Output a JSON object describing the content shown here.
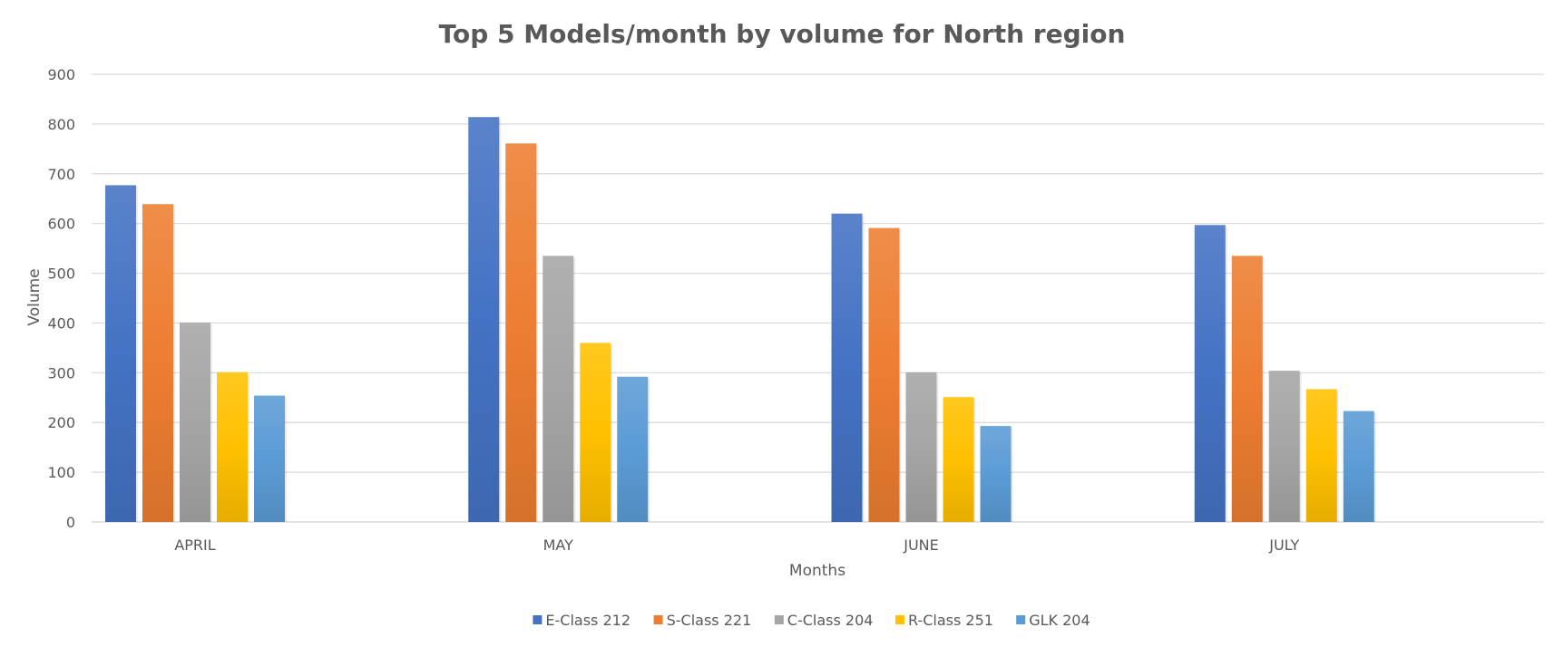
{
  "chart_data": {
    "type": "bar",
    "title": "Top 5 Models/month by volume for North region",
    "xlabel": "Months",
    "ylabel": "Volume",
    "ylim": [
      0,
      900
    ],
    "yticks": [
      0,
      100,
      200,
      300,
      400,
      500,
      600,
      700,
      800,
      900
    ],
    "categories": [
      "APRIL",
      "MAY",
      "JUNE",
      "JULY"
    ],
    "grid": true,
    "legend_position": "bottom",
    "series": [
      {
        "name": "E-Class 212",
        "color": "#4472c4",
        "values": [
          677,
          814,
          620,
          597
        ]
      },
      {
        "name": "S-Class 221",
        "color": "#ed7d31",
        "values": [
          639,
          761,
          591,
          535
        ]
      },
      {
        "name": "C-Class 204",
        "color": "#a5a5a5",
        "values": [
          401,
          535,
          301,
          304
        ]
      },
      {
        "name": "R-Class 251",
        "color": "#ffc000",
        "values": [
          301,
          360,
          251,
          267
        ]
      },
      {
        "name": "GLK 204",
        "color": "#5b9bd5",
        "values": [
          254,
          292,
          193,
          223
        ]
      }
    ]
  }
}
